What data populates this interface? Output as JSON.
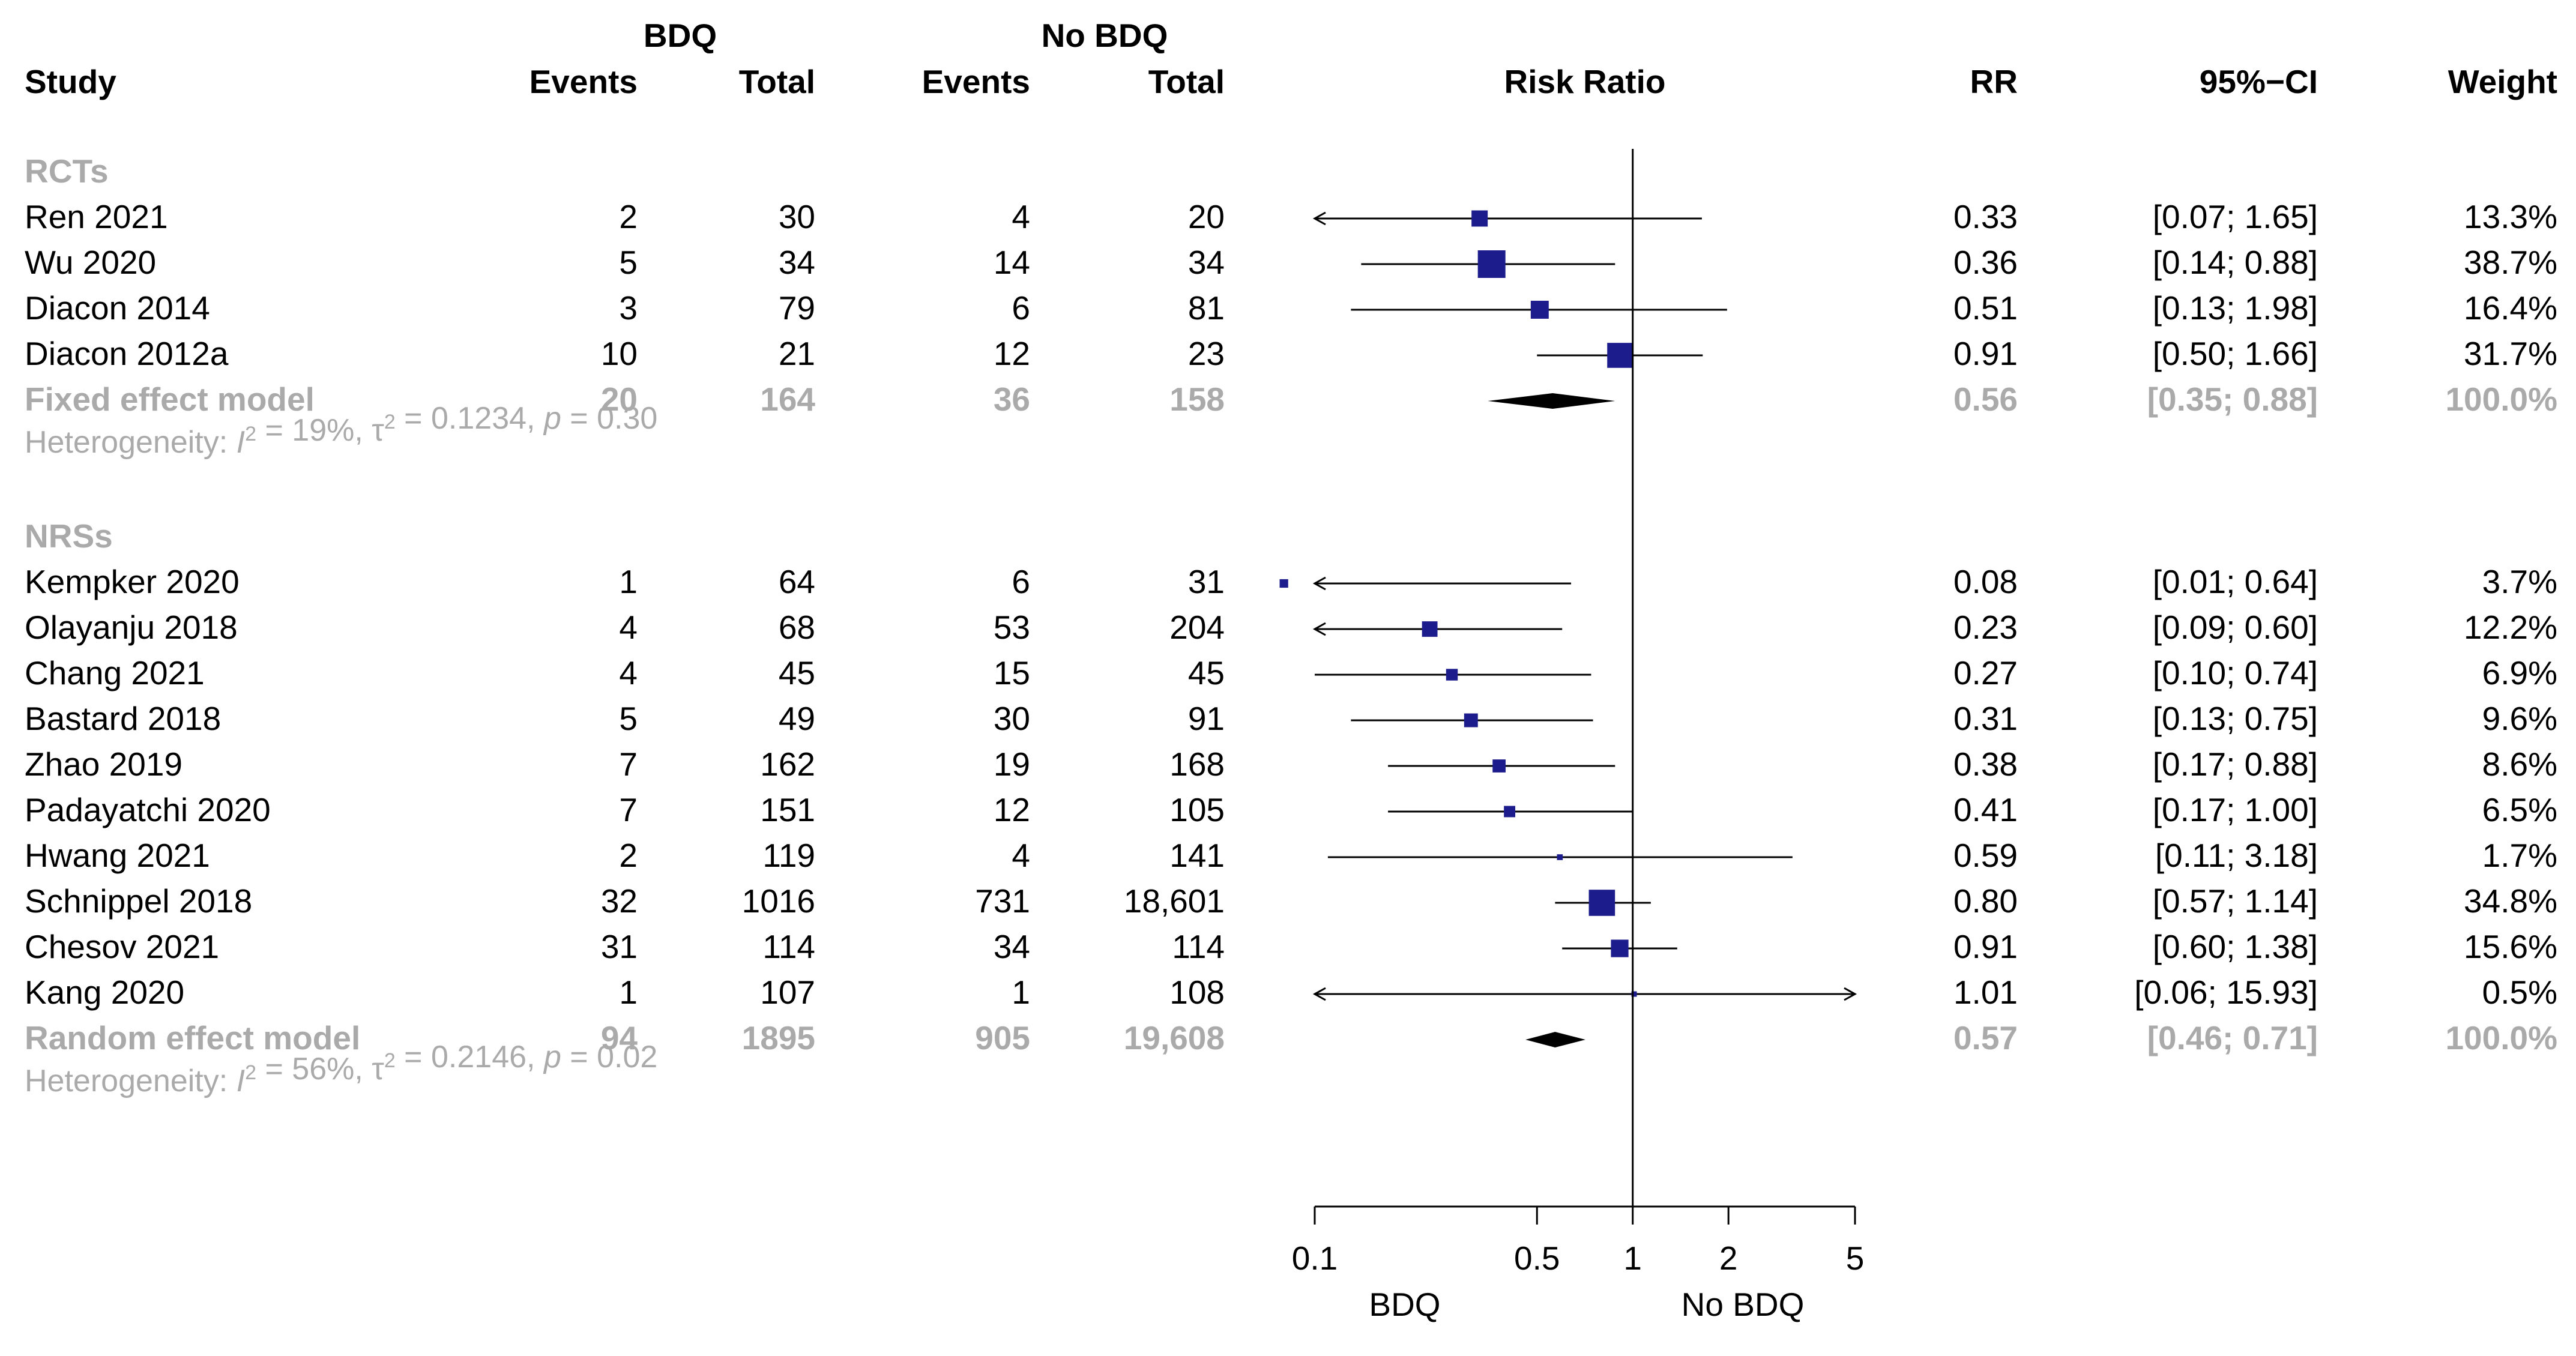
{
  "chart_data": {
    "type": "forest",
    "headers": {
      "group1": "BDQ",
      "group2": "No BDQ",
      "study": "Study",
      "events1": "Events",
      "total1": "Total",
      "events2": "Events",
      "total2": "Total",
      "plot_title": "Risk Ratio",
      "rr": "RR",
      "ci": "95%−CI",
      "weight": "Weight"
    },
    "x_axis": {
      "scale": "log",
      "range": [
        0.1,
        5
      ],
      "ticks": [
        0.1,
        0.5,
        1,
        2,
        5
      ],
      "tick_labels": [
        "0.1",
        "0.5",
        "1",
        "2",
        "5"
      ],
      "reference_line": 1,
      "left_label": "BDQ",
      "right_label": "No BDQ"
    },
    "subgroups": [
      {
        "label": "RCTs",
        "studies": [
          {
            "study": "Ren   2021",
            "e1": "2",
            "n1": "30",
            "e2": "4",
            "n2": "20",
            "rr": 0.33,
            "lo": 0.07,
            "hi": 1.65,
            "weight": 13.3,
            "rr_text": "0.33",
            "ci_text": "[0.07;  1.65]",
            "w_text": "13.3%"
          },
          {
            "study": "Wu   2020",
            "e1": "5",
            "n1": "34",
            "e2": "14",
            "n2": "34",
            "rr": 0.36,
            "lo": 0.14,
            "hi": 0.88,
            "weight": 38.7,
            "rr_text": "0.36",
            "ci_text": "[0.14;  0.88]",
            "w_text": "38.7%"
          },
          {
            "study": "Diacon   2014",
            "e1": "3",
            "n1": "79",
            "e2": "6",
            "n2": "81",
            "rr": 0.51,
            "lo": 0.13,
            "hi": 1.98,
            "weight": 16.4,
            "rr_text": "0.51",
            "ci_text": "[0.13;  1.98]",
            "w_text": "16.4%"
          },
          {
            "study": "Diacon   2012a",
            "e1": "10",
            "n1": "21",
            "e2": "12",
            "n2": "23",
            "rr": 0.91,
            "lo": 0.5,
            "hi": 1.66,
            "weight": 31.7,
            "rr_text": "0.91",
            "ci_text": "[0.50;  1.66]",
            "w_text": "31.7%"
          }
        ],
        "pooled": {
          "label": "Fixed effect model",
          "e1": "20",
          "n1": "164",
          "e2": "36",
          "n2": "158",
          "rr": 0.56,
          "lo": 0.35,
          "hi": 0.88,
          "rr_text": "0.56",
          "ci_text": "[0.35;  0.88]",
          "w_text": "100.0%"
        },
        "heterogeneity": {
          "prefix": "Heterogeneity: ",
          "I2_symbol": "I",
          "I2_sup": "2",
          "I2_value": " = 19%, ",
          "tau_symbol": "τ",
          "tau_sup": "2",
          "tau_value": " = 0.1234, ",
          "p_symbol": "p",
          "p_value": " = 0.30"
        }
      },
      {
        "label": "NRSs",
        "studies": [
          {
            "study": "Kempker   2020",
            "e1": "1",
            "n1": "64",
            "e2": "6",
            "n2": "31",
            "rr": 0.08,
            "lo": 0.01,
            "hi": 0.64,
            "weight": 3.7,
            "rr_text": "0.08",
            "ci_text": "[0.01;  0.64]",
            "w_text": "3.7%"
          },
          {
            "study": "Olayanju   2018",
            "e1": "4",
            "n1": "68",
            "e2": "53",
            "n2": "204",
            "rr": 0.23,
            "lo": 0.09,
            "hi": 0.6,
            "weight": 12.2,
            "rr_text": "0.23",
            "ci_text": "[0.09;  0.60]",
            "w_text": "12.2%"
          },
          {
            "study": "Chang   2021",
            "e1": "4",
            "n1": "45",
            "e2": "15",
            "n2": "45",
            "rr": 0.27,
            "lo": 0.1,
            "hi": 0.74,
            "weight": 6.9,
            "rr_text": "0.27",
            "ci_text": "[0.10;  0.74]",
            "w_text": "6.9%"
          },
          {
            "study": "Bastard   2018",
            "e1": "5",
            "n1": "49",
            "e2": "30",
            "n2": "91",
            "rr": 0.31,
            "lo": 0.13,
            "hi": 0.75,
            "weight": 9.6,
            "rr_text": "0.31",
            "ci_text": "[0.13;  0.75]",
            "w_text": "9.6%"
          },
          {
            "study": "Zhao   2019",
            "e1": "7",
            "n1": "162",
            "e2": "19",
            "n2": "168",
            "rr": 0.38,
            "lo": 0.17,
            "hi": 0.88,
            "weight": 8.6,
            "rr_text": "0.38",
            "ci_text": "[0.17;  0.88]",
            "w_text": "8.6%"
          },
          {
            "study": "Padayatchi   2020",
            "e1": "7",
            "n1": "151",
            "e2": "12",
            "n2": "105",
            "rr": 0.41,
            "lo": 0.17,
            "hi": 1.0,
            "weight": 6.5,
            "rr_text": "0.41",
            "ci_text": "[0.17;  1.00]",
            "w_text": "6.5%"
          },
          {
            "study": "Hwang   2021",
            "e1": "2",
            "n1": "119",
            "e2": "4",
            "n2": "141",
            "rr": 0.59,
            "lo": 0.11,
            "hi": 3.18,
            "weight": 1.7,
            "rr_text": "0.59",
            "ci_text": "[0.11;  3.18]",
            "w_text": "1.7%"
          },
          {
            "study": "Schnippel   2018",
            "e1": "32",
            "n1": "1016",
            "e2": "731",
            "n2": "18,601",
            "rr": 0.8,
            "lo": 0.57,
            "hi": 1.14,
            "weight": 34.8,
            "rr_text": "0.80",
            "ci_text": "[0.57;  1.14]",
            "w_text": "34.8%"
          },
          {
            "study": "Chesov   2021",
            "e1": "31",
            "n1": "114",
            "e2": "34",
            "n2": "114",
            "rr": 0.91,
            "lo": 0.6,
            "hi": 1.38,
            "weight": 15.6,
            "rr_text": "0.91",
            "ci_text": "[0.60;  1.38]",
            "w_text": "15.6%"
          },
          {
            "study": "Kang   2020",
            "e1": "1",
            "n1": "107",
            "e2": "1",
            "n2": "108",
            "rr": 1.01,
            "lo": 0.06,
            "hi": 15.93,
            "weight": 0.5,
            "rr_text": "1.01",
            "ci_text": "[0.06; 15.93]",
            "w_text": "0.5%"
          }
        ],
        "pooled": {
          "label": "Random effect model",
          "e1": "94",
          "n1": "1895",
          "e2": "905",
          "n2": "19,608",
          "rr": 0.57,
          "lo": 0.46,
          "hi": 0.71,
          "rr_text": "0.57",
          "ci_text": "[0.46;  0.71]",
          "w_text": "100.0%"
        },
        "heterogeneity": {
          "prefix": "Heterogeneity: ",
          "I2_symbol": "I",
          "I2_sup": "2",
          "I2_value": " = 56%, ",
          "tau_symbol": "τ",
          "tau_sup": "2",
          "tau_value": " = 0.2146, ",
          "p_symbol": "p",
          "p_value": " = 0.02"
        }
      }
    ],
    "colors": {
      "square": "#1c1c8c",
      "diamond": "#000000",
      "pooled_text": "#aaaaaa"
    }
  }
}
